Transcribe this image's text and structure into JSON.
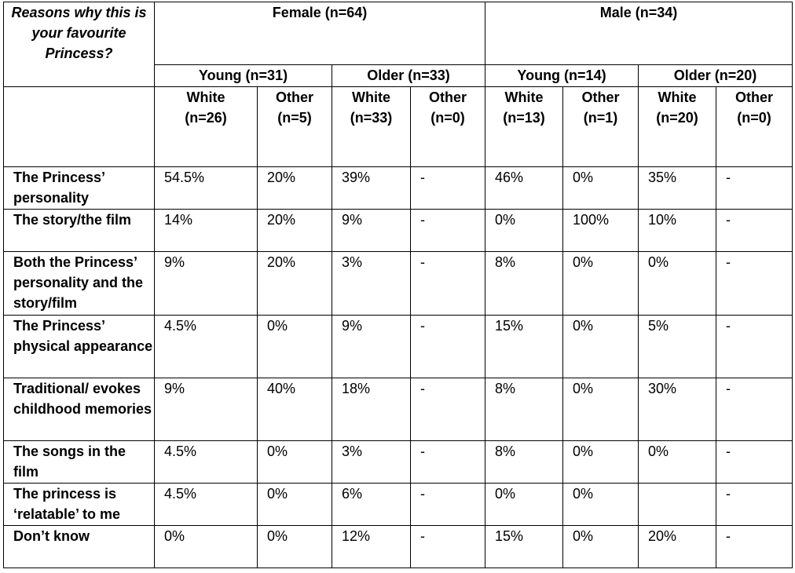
{
  "table": {
    "question_header": "Reasons why this is your favourite Princess?",
    "groups": {
      "female": "Female (n=64)",
      "male": "Male (n=34)"
    },
    "age_groups": {
      "female_young": "Young (n=31)",
      "female_older": "Older (n=33)",
      "male_young": "Young (n=14)",
      "male_older": "Older (n=20)"
    },
    "sub_columns": [
      {
        "label": "White",
        "n": "(n=26)"
      },
      {
        "label": "Other",
        "n": "(n=5)"
      },
      {
        "label": "White",
        "n": "(n=33)"
      },
      {
        "label": "Other",
        "n": "(n=0)"
      },
      {
        "label": "White",
        "n": "(n=13)"
      },
      {
        "label": "Other",
        "n": "(n=1)"
      },
      {
        "label": "White",
        "n": "(n=20)"
      },
      {
        "label": "Other",
        "n": "(n=0)"
      }
    ],
    "rows": [
      {
        "label": "The Princess’ personality",
        "values": [
          "54.5%",
          "20%",
          "39%",
          "-",
          "46%",
          "0%",
          "35%",
          "-"
        ]
      },
      {
        "label": "The story/the film",
        "values": [
          "14%",
          "20%",
          "9%",
          "-",
          "0%",
          "100%",
          "10%",
          "-"
        ]
      },
      {
        "label": "Both the Princess’ personality and the story/film",
        "values": [
          "9%",
          "20%",
          "3%",
          "-",
          "8%",
          "0%",
          "0%",
          "-"
        ]
      },
      {
        "label": "The Princess’ physical appearance",
        "values": [
          "4.5%",
          "0%",
          "9%",
          "-",
          "15%",
          "0%",
          "5%",
          "-"
        ]
      },
      {
        "label": "Traditional/ evokes childhood memories",
        "values": [
          "9%",
          "40%",
          "18%",
          "-",
          "8%",
          "0%",
          "30%",
          "-"
        ]
      },
      {
        "label": "The songs in the film",
        "values": [
          "4.5%",
          "0%",
          "3%",
          "-",
          "8%",
          "0%",
          "0%",
          "-"
        ]
      },
      {
        "label": "The princess is ‘relatable’ to me",
        "values": [
          "4.5%",
          "0%",
          "6%",
          "-",
          "0%",
          "0%",
          "",
          "-"
        ]
      },
      {
        "label": "Don’t know",
        "values": [
          "0%",
          "0%",
          "12%",
          "-",
          "15%",
          "0%",
          "20%",
          "-"
        ]
      }
    ]
  }
}
